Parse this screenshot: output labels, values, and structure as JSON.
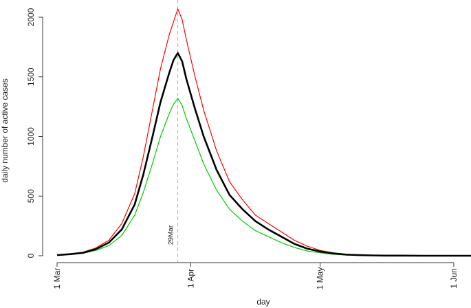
{
  "chart_data": {
    "type": "line",
    "title": "",
    "xlabel": "day",
    "ylabel": "daily number of active cases",
    "x_ticks": [
      "1 Mar",
      "1 Apr",
      "1 May",
      "1 Jun"
    ],
    "y_ticks": [
      0,
      500,
      1000,
      1500,
      2000
    ],
    "xlim": [
      "2020-03-01",
      "2020-06-05"
    ],
    "ylim": [
      0,
      2000
    ],
    "grid": false,
    "legend": "none",
    "annotation": {
      "label": "29Mar",
      "x": "2020-03-29",
      "style": "dashed-vertical-line"
    },
    "x": [
      "2020-03-01",
      "2020-03-04",
      "2020-03-07",
      "2020-03-10",
      "2020-03-13",
      "2020-03-16",
      "2020-03-19",
      "2020-03-21",
      "2020-03-23",
      "2020-03-25",
      "2020-03-27",
      "2020-03-28",
      "2020-03-29",
      "2020-03-30",
      "2020-03-31",
      "2020-04-02",
      "2020-04-04",
      "2020-04-07",
      "2020-04-10",
      "2020-04-13",
      "2020-04-16",
      "2020-04-19",
      "2020-04-22",
      "2020-04-25",
      "2020-04-28",
      "2020-05-01",
      "2020-05-04",
      "2020-05-07",
      "2020-05-10",
      "2020-05-13",
      "2020-05-16",
      "2020-05-20",
      "2020-05-25",
      "2020-05-31",
      "2020-06-05"
    ],
    "series": [
      {
        "color": "#ff0000",
        "values": [
          5,
          15,
          30,
          65,
          130,
          270,
          520,
          830,
          1200,
          1570,
          1850,
          1960,
          2070,
          1980,
          1810,
          1500,
          1220,
          880,
          620,
          470,
          340,
          270,
          200,
          130,
          80,
          45,
          25,
          12,
          6,
          3,
          2,
          1,
          0,
          0,
          0
        ]
      },
      {
        "color": "#000000",
        "values": [
          5,
          13,
          25,
          55,
          110,
          220,
          430,
          680,
          980,
          1290,
          1530,
          1640,
          1700,
          1630,
          1480,
          1230,
          1000,
          720,
          510,
          390,
          290,
          220,
          160,
          100,
          60,
          35,
          20,
          10,
          5,
          3,
          1,
          1,
          0,
          0,
          0
        ]
      },
      {
        "color": "#00cc00",
        "values": [
          4,
          10,
          20,
          45,
          85,
          170,
          340,
          530,
          760,
          1000,
          1190,
          1270,
          1320,
          1260,
          1150,
          960,
          770,
          550,
          390,
          290,
          210,
          160,
          110,
          70,
          40,
          25,
          12,
          6,
          3,
          2,
          1,
          0,
          0,
          0,
          0
        ]
      }
    ]
  }
}
